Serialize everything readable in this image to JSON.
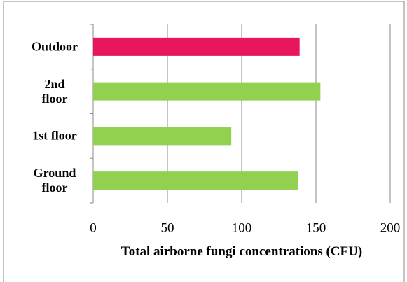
{
  "chart_data": {
    "type": "bar",
    "orientation": "horizontal",
    "x_label": "Total airborne fungi concentrations (CFU)",
    "categories": [
      "Outdoor",
      "2nd floor",
      "1st floor",
      "Ground floor"
    ],
    "values": [
      139,
      153,
      93,
      138
    ],
    "colors": [
      "#e8175d",
      "#92d050",
      "#92d050",
      "#92d050"
    ],
    "xlim": [
      0,
      200
    ],
    "xticks": [
      0,
      50,
      100,
      150,
      200
    ],
    "grid": true
  }
}
